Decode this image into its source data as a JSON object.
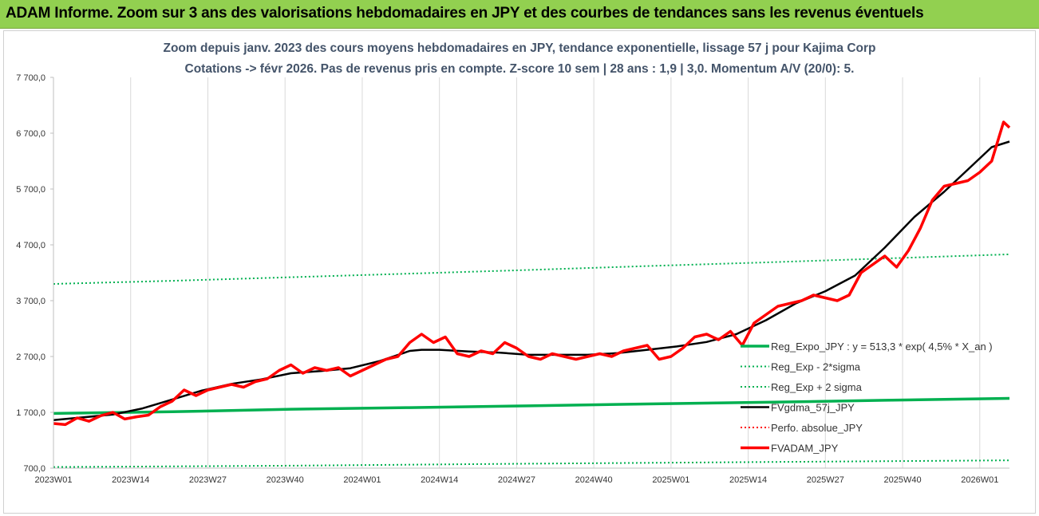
{
  "banner": {
    "title": "ADAM Informe. Zoom sur 3 ans des valorisations hebdomadaires en JPY et des courbes de tendances sans les revenus éventuels"
  },
  "colors": {
    "banner_bg": "#92d050",
    "title_text": "#44546a",
    "regression": "#00b050",
    "fv_sigma": "#000000",
    "fv_adam": "#ff0000",
    "perf_absolue": "#ff0000"
  },
  "chart_data": {
    "type": "line",
    "title": "Zoom depuis janv. 2023 des cours moyens hebdomadaires en JPY, tendance exponentielle, lissage 57 j pour Kajima Corp",
    "subtitle": "Cotations -> févr 2026.  Pas de revenus pris en compte. Z-score 10 sem | 28 ans : 1,9 | 3,0. Momentum A/V (20/0): 5.",
    "xlabel": "",
    "ylabel": "",
    "ylim": [
      700,
      7700
    ],
    "xlim": [
      0,
      161
    ],
    "grid": "vertical",
    "legend_position": "right-bottom",
    "y_ticks": [
      700,
      1700,
      2700,
      3700,
      4700,
      5700,
      6700,
      7700
    ],
    "y_tick_labels": [
      "700,0",
      "1 700,0",
      "2 700,0",
      "3 700,0",
      "4 700,0",
      "5 700,0",
      "6 700,0",
      "7 700,0"
    ],
    "x_ticks": [
      0,
      13,
      26,
      39,
      52,
      65,
      78,
      91,
      104,
      117,
      130,
      143,
      156
    ],
    "x_tick_labels": [
      "2023W01",
      "2023W14",
      "2023W27",
      "2023W40",
      "2024W01",
      "2024W14",
      "2024W27",
      "2024W40",
      "2025W01",
      "2025W14",
      "2025W27",
      "2025W40",
      "2026W01"
    ],
    "series": [
      {
        "name": "Reg_Expo_JPY : y = 513,3 * exp( 4,5% *  X_an )",
        "style": "solid-thick",
        "color": "#00b050",
        "x": [
          0,
          20,
          40,
          60,
          80,
          100,
          120,
          140,
          161
        ],
        "y": [
          1680,
          1710,
          1755,
          1785,
          1815,
          1850,
          1880,
          1915,
          1950
        ]
      },
      {
        "name": "Reg_Exp - 2*sigma",
        "style": "dotted",
        "color": "#00b050",
        "x": [
          0,
          40,
          80,
          120,
          161
        ],
        "y": [
          720,
          745,
          780,
          810,
          840
        ]
      },
      {
        "name": "Reg_Exp + 2 sigma",
        "style": "dotted",
        "color": "#00b050",
        "x": [
          0,
          20,
          40,
          60,
          80,
          100,
          120,
          140,
          161
        ],
        "y": [
          4000,
          4055,
          4120,
          4185,
          4250,
          4320,
          4385,
          4455,
          4530
        ]
      },
      {
        "name": "FVgdma_57j_JPY",
        "style": "solid",
        "color": "#000000",
        "x": [
          0,
          10,
          15,
          20,
          25,
          30,
          35,
          40,
          45,
          50,
          55,
          60,
          62,
          65,
          70,
          75,
          80,
          85,
          90,
          95,
          100,
          105,
          110,
          115,
          120,
          125,
          130,
          135,
          140,
          145,
          150,
          155,
          158,
          161
        ],
        "y": [
          1560,
          1660,
          1770,
          1930,
          2090,
          2210,
          2290,
          2400,
          2440,
          2490,
          2620,
          2800,
          2820,
          2820,
          2790,
          2770,
          2730,
          2730,
          2730,
          2760,
          2820,
          2880,
          2960,
          3100,
          3350,
          3650,
          3870,
          4150,
          4650,
          5200,
          5650,
          6150,
          6450,
          6550
        ]
      },
      {
        "name": "Perfo. absolue_JPY",
        "style": "dotted",
        "color": "#ff0000",
        "x": [],
        "y": []
      },
      {
        "name": "FVADAM_JPY",
        "style": "solid-thick",
        "color": "#ff0000",
        "x": [
          0,
          2,
          4,
          6,
          8,
          10,
          12,
          14,
          16,
          18,
          20,
          22,
          24,
          26,
          28,
          30,
          32,
          34,
          36,
          38,
          40,
          42,
          44,
          46,
          48,
          50,
          52,
          54,
          56,
          58,
          60,
          62,
          64,
          66,
          68,
          70,
          72,
          74,
          76,
          78,
          80,
          82,
          84,
          86,
          88,
          90,
          92,
          94,
          96,
          98,
          100,
          102,
          104,
          106,
          108,
          110,
          112,
          114,
          116,
          118,
          120,
          122,
          124,
          126,
          128,
          130,
          132,
          134,
          136,
          138,
          140,
          142,
          144,
          146,
          148,
          150,
          152,
          154,
          156,
          158,
          160,
          161
        ],
        "y": [
          1500,
          1480,
          1600,
          1540,
          1640,
          1700,
          1580,
          1620,
          1650,
          1800,
          1900,
          2100,
          2000,
          2100,
          2150,
          2200,
          2150,
          2250,
          2300,
          2450,
          2550,
          2400,
          2500,
          2450,
          2500,
          2350,
          2450,
          2550,
          2650,
          2700,
          2950,
          3100,
          2950,
          3050,
          2750,
          2700,
          2800,
          2750,
          2950,
          2850,
          2700,
          2650,
          2750,
          2700,
          2650,
          2700,
          2750,
          2700,
          2800,
          2850,
          2900,
          2650,
          2700,
          2850,
          3050,
          3100,
          3000,
          3150,
          2900,
          3300,
          3450,
          3600,
          3650,
          3700,
          3800,
          3750,
          3700,
          3800,
          4200,
          4350,
          4500,
          4300,
          4600,
          5000,
          5500,
          5750,
          5800,
          5850,
          6000,
          6200,
          6900,
          6800
        ]
      }
    ]
  }
}
